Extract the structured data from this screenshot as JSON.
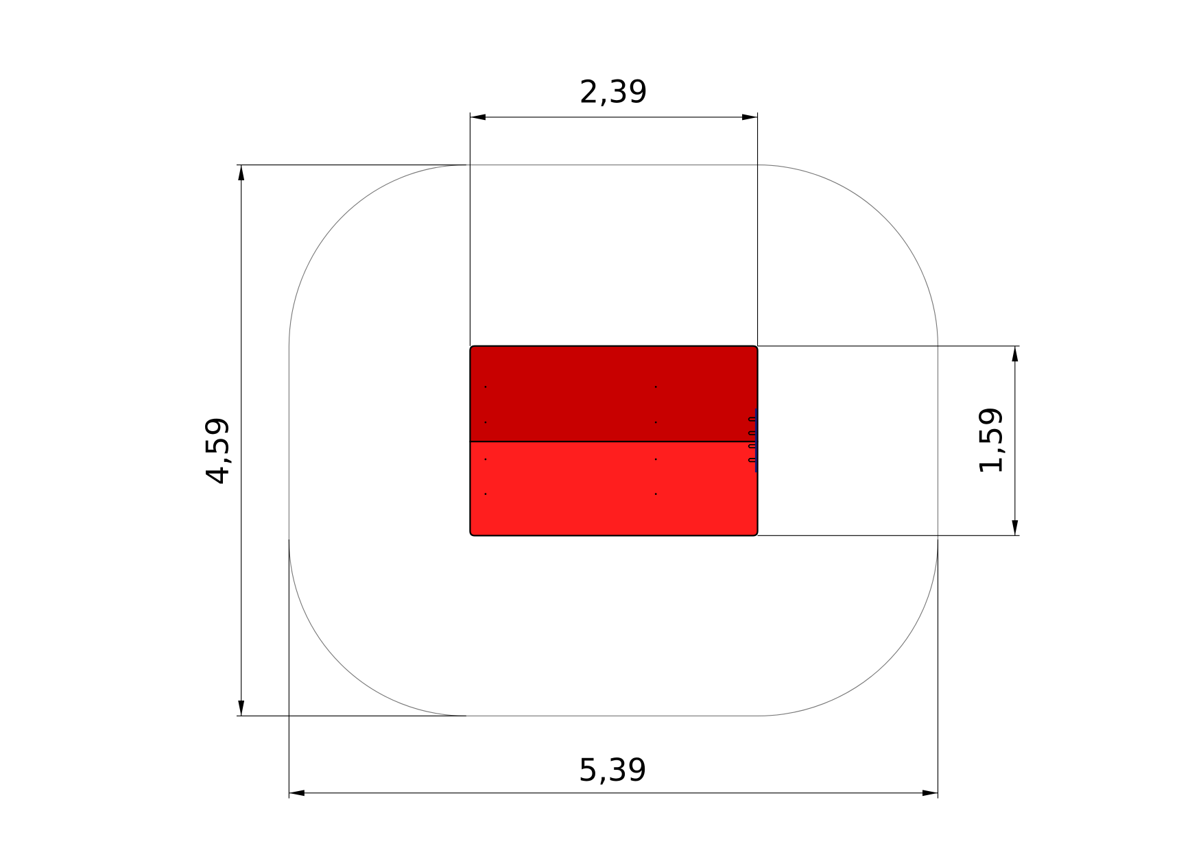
{
  "drawing": {
    "dimensions": {
      "top_width": "2,39",
      "overall_height": "4,59",
      "part_height": "1,59",
      "overall_width": "5,39"
    },
    "colors": {
      "part_top": "#c80000",
      "part_bottom": "#ff1e1e",
      "connector": "#1a1a7a",
      "outline": "#777777"
    }
  }
}
